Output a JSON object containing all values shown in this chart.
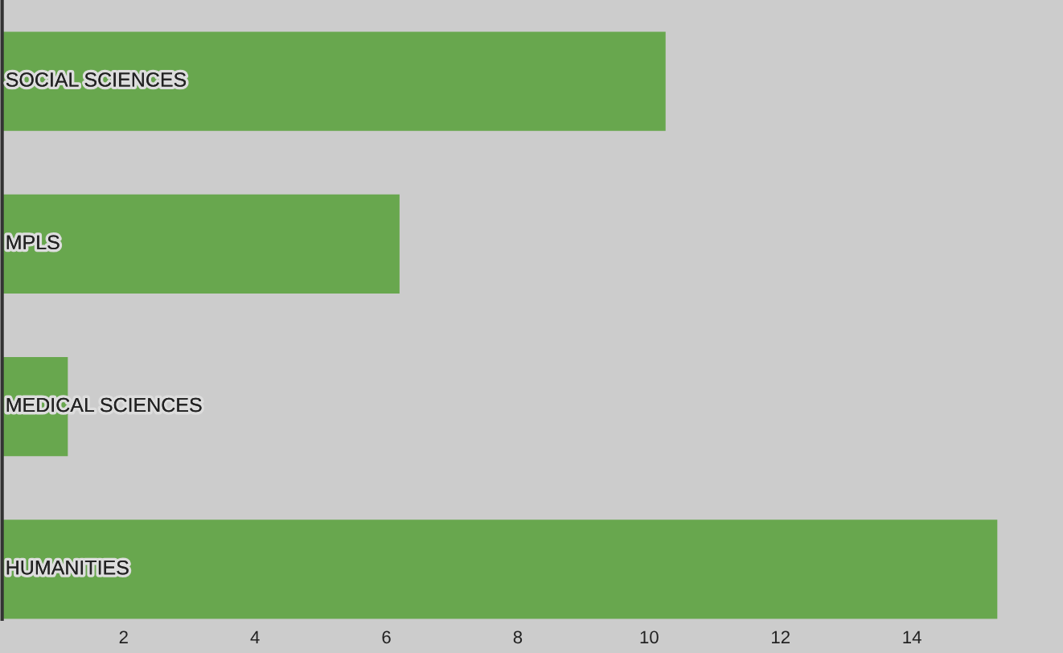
{
  "chart_data": {
    "type": "bar",
    "orientation": "horizontal",
    "categories": [
      "SOCIAL SCIENCES",
      "MPLS",
      "MEDICAL SCIENCES",
      "HUMANITIES"
    ],
    "values": [
      10.25,
      6.2,
      1.15,
      15.3
    ],
    "color": "#68a74e",
    "xlim": [
      0.15,
      16.3
    ],
    "xticks": [
      2,
      4,
      6,
      8,
      10,
      12,
      14
    ],
    "legend": false,
    "tick_labels": "x"
  }
}
